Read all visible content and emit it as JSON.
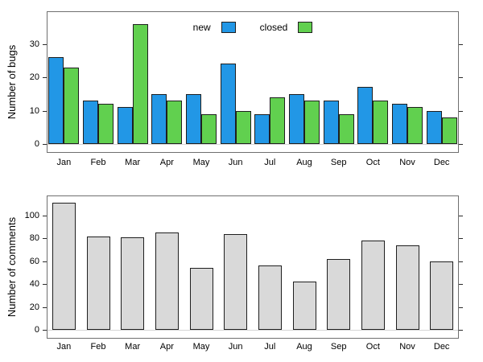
{
  "chart_data": [
    {
      "type": "bar",
      "title": "",
      "categories": [
        "Jan",
        "Feb",
        "Mar",
        "Apr",
        "May",
        "Jun",
        "Jul",
        "Aug",
        "Sep",
        "Oct",
        "Nov",
        "Dec"
      ],
      "series": [
        {
          "name": "new",
          "color": "#2297E6",
          "values": [
            26,
            13,
            11,
            15,
            15,
            24,
            9,
            15,
            13,
            17,
            12,
            10
          ]
        },
        {
          "name": "closed",
          "color": "#61D04F",
          "values": [
            23,
            12,
            36,
            13,
            9,
            10,
            14,
            13,
            9,
            13,
            11,
            8
          ]
        }
      ],
      "xlabel": "",
      "ylabel": "Number of bugs",
      "yticks": [
        0,
        10,
        20,
        30
      ],
      "ylim": [
        0,
        38
      ],
      "grid": false,
      "legend_position": "top-center-inside"
    },
    {
      "type": "bar",
      "title": "",
      "categories": [
        "Jan",
        "Feb",
        "Mar",
        "Apr",
        "May",
        "Jun",
        "Jul",
        "Aug",
        "Sep",
        "Oct",
        "Nov",
        "Dec"
      ],
      "series": [
        {
          "name": "comments",
          "color": "#d9d9d9",
          "values": [
            111,
            82,
            81,
            85,
            54,
            84,
            56,
            42,
            62,
            78,
            74,
            60
          ]
        }
      ],
      "xlabel": "",
      "ylabel": "Number of comments",
      "yticks": [
        0,
        20,
        40,
        60,
        80,
        100
      ],
      "ylim": [
        0,
        118
      ],
      "grid": false,
      "legend_position": "none"
    }
  ],
  "colors": {
    "new_bar": "#2297E6",
    "closed_bar": "#61D04F",
    "comments_bar": "#d9d9d9",
    "box_border": "#6f6f6f",
    "tick": "#2b2b2b",
    "text": "#000000",
    "zero_line": "#d6d6d6"
  }
}
